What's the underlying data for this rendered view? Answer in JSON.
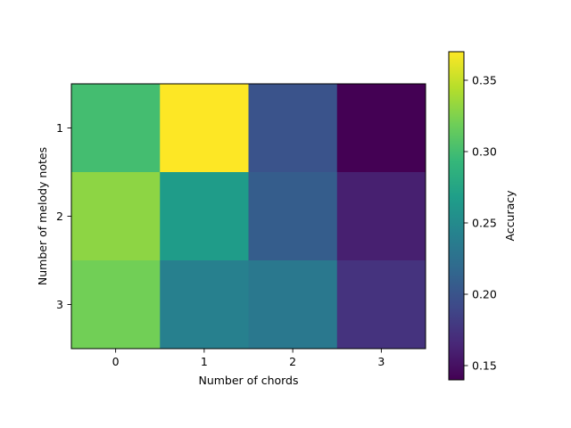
{
  "chart_data": {
    "type": "heatmap",
    "xlabel": "Number of chords",
    "ylabel": "Number of melody notes",
    "x_categories": [
      "0",
      "1",
      "2",
      "3"
    ],
    "y_categories": [
      "1",
      "2",
      "3"
    ],
    "values": [
      [
        0.3,
        0.37,
        0.199,
        0.14
      ],
      [
        0.33,
        0.266,
        0.208,
        0.16
      ],
      [
        0.32,
        0.24,
        0.232,
        0.174
      ]
    ],
    "colorbar": {
      "label": "Accuracy",
      "range": [
        0.14,
        0.37
      ],
      "ticks": [
        "0.15",
        "0.20",
        "0.25",
        "0.30",
        "0.35"
      ],
      "colormap": "viridis"
    }
  }
}
